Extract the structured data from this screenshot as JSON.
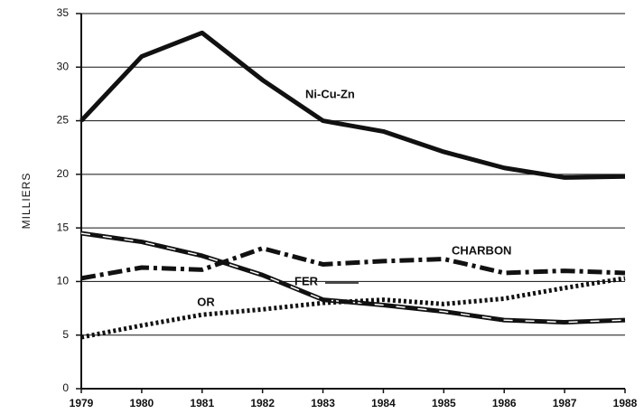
{
  "chart_data": {
    "type": "line",
    "y_label": "MILLIERS",
    "x": [
      1979,
      1980,
      1981,
      1982,
      1983,
      1984,
      1985,
      1986,
      1987,
      1988
    ],
    "xlim": [
      1979,
      1988
    ],
    "xticks": [
      1979,
      1980,
      1981,
      1982,
      1983,
      1984,
      1985,
      1986,
      1987,
      1988
    ],
    "ylim": [
      0,
      35
    ],
    "yticks": [
      0,
      5,
      10,
      15,
      20,
      25,
      30,
      35
    ],
    "grid": true,
    "series": [
      {
        "name": "Ni-Cu-Zn",
        "color": "#111111",
        "style": "solid",
        "values": [
          25,
          31,
          33.2,
          28.8,
          25,
          24,
          22.1,
          20.6,
          19.7,
          19.8
        ]
      },
      {
        "name": "FER",
        "color": "#111111",
        "style": "dashed",
        "values": [
          14.5,
          13.7,
          12.4,
          10.6,
          8.3,
          7.8,
          7.2,
          6.4,
          6.2,
          6.4
        ]
      },
      {
        "name": "CHARBON",
        "color": "#111111",
        "style": "dashdot",
        "values": [
          10.3,
          11.3,
          11.1,
          13.1,
          11.6,
          11.9,
          12.1,
          10.8,
          11.0,
          10.8
        ]
      },
      {
        "name": "OR",
        "color": "#111111",
        "style": "dotted",
        "values": [
          4.8,
          5.9,
          6.9,
          7.4,
          8.0,
          8.3,
          7.9,
          8.4,
          9.4,
          10.3
        ]
      }
    ]
  }
}
